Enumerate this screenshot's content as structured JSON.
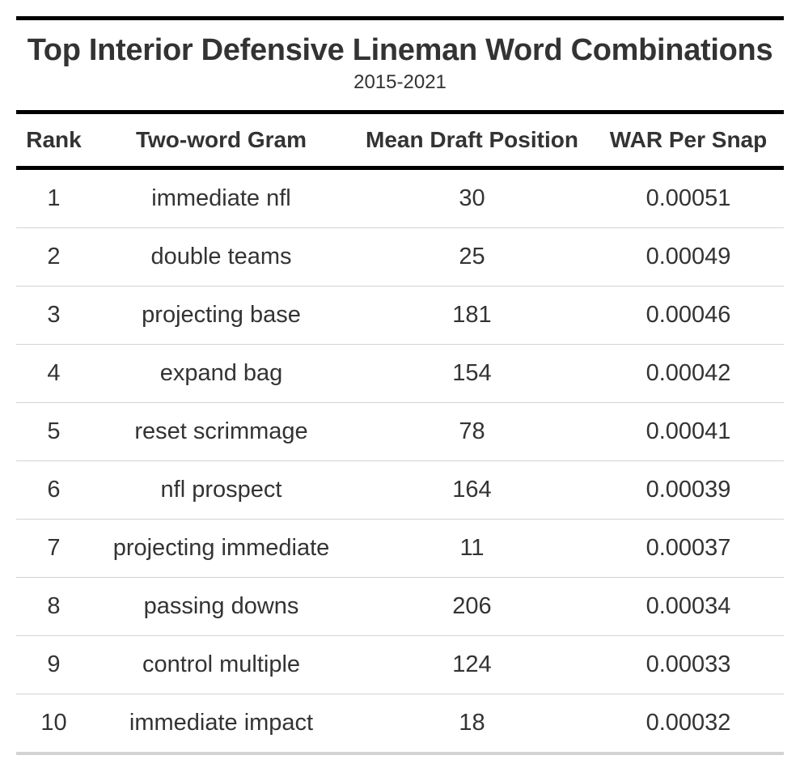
{
  "chart_data": {
    "type": "table",
    "title": "Top Interior Defensive Lineman Word Combinations",
    "subtitle": "2015-2021",
    "columns": [
      "Rank",
      "Two-word Gram",
      "Mean Draft Position",
      "WAR Per Snap"
    ],
    "rows": [
      [
        "1",
        "immediate nfl",
        "30",
        "0.00051"
      ],
      [
        "2",
        "double teams",
        "25",
        "0.00049"
      ],
      [
        "3",
        "projecting base",
        "181",
        "0.00046"
      ],
      [
        "4",
        "expand bag",
        "154",
        "0.00042"
      ],
      [
        "5",
        "reset scrimmage",
        "78",
        "0.00041"
      ],
      [
        "6",
        "nfl prospect",
        "164",
        "0.00039"
      ],
      [
        "7",
        "projecting immediate",
        "11",
        "0.00037"
      ],
      [
        "8",
        "passing downs",
        "206",
        "0.00034"
      ],
      [
        "9",
        "control multiple",
        "124",
        "0.00033"
      ],
      [
        "10",
        "immediate impact",
        "18",
        "0.00032"
      ]
    ]
  },
  "colors": {
    "text": "#333333",
    "rule": "#000000",
    "row_divider": "#d3d3d3"
  }
}
